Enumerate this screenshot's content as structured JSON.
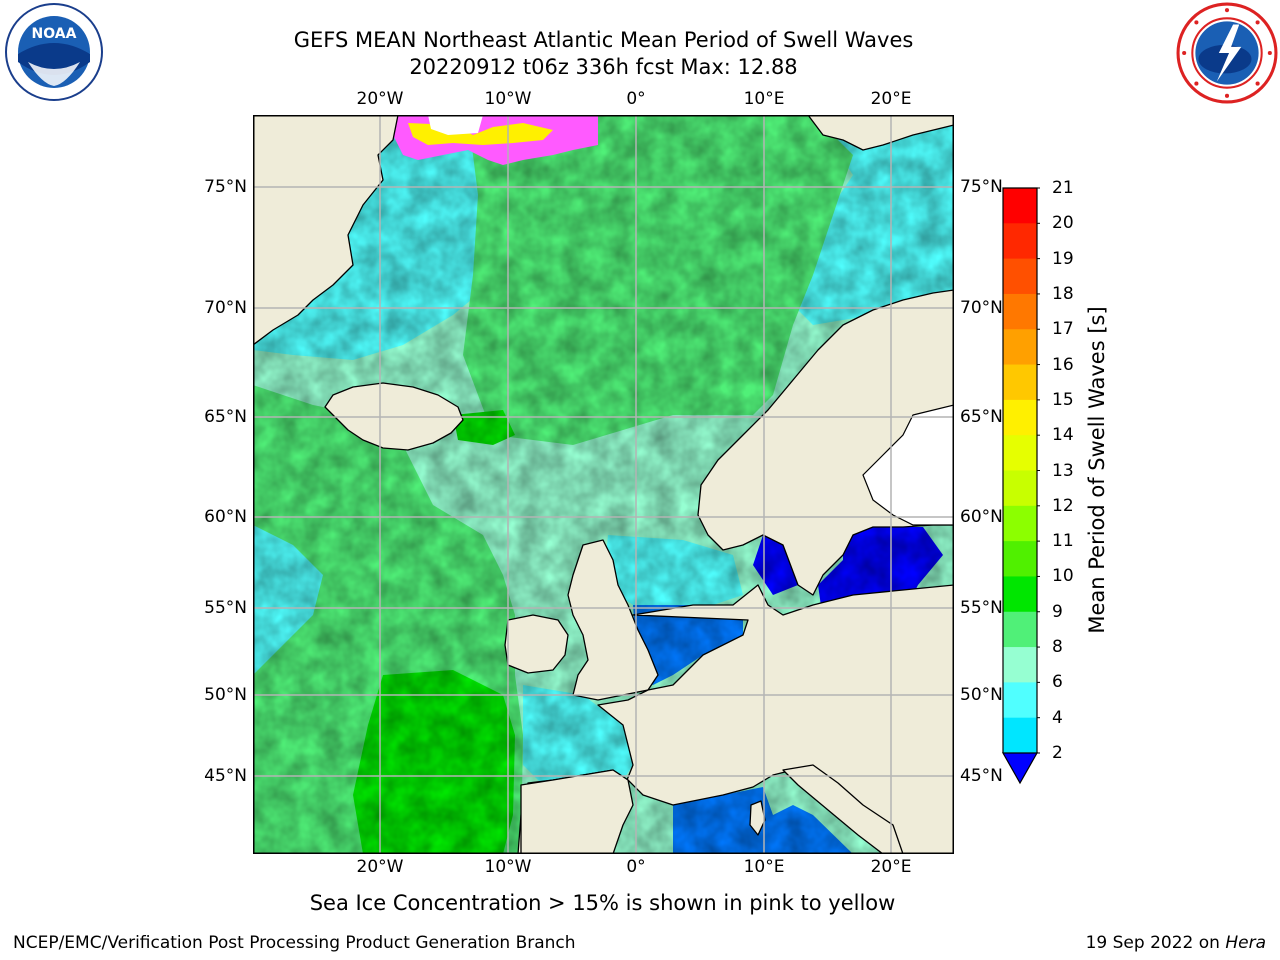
{
  "title": {
    "line1": "GEFS MEAN Northeast Atlantic Mean Period of Swell Waves",
    "line2": "20220912 t06z 336h fcst   Max: 12.88"
  },
  "logos": {
    "noaa": {
      "text": "NOAA",
      "icon": "noaa-logo-icon"
    },
    "nws": {
      "icon": "nws-logo-icon"
    }
  },
  "map": {
    "lon_labels": [
      "20°W",
      "10°W",
      "0°",
      "10°E",
      "20°E"
    ],
    "lat_labels": [
      "75°N",
      "70°N",
      "65°N",
      "60°N",
      "55°N",
      "50°N",
      "45°N"
    ],
    "extent": {
      "lon_min": -30,
      "lon_max": 25,
      "lat_min": 41,
      "lat_max": 78
    },
    "colors": {
      "land": "#efecd9",
      "coast": "#000000",
      "grid": "#b4b4b4",
      "inland_water": "#ffffff"
    }
  },
  "colorbar": {
    "title": "Mean Period of Swell Waves [s]",
    "labels": [
      "21",
      "20",
      "19",
      "18",
      "17",
      "16",
      "15",
      "14",
      "13",
      "12",
      "11",
      "10",
      "9",
      "8",
      "6",
      "4",
      "2"
    ],
    "colors": [
      "#ff0000",
      "#ff2800",
      "#ff5000",
      "#ff7800",
      "#ffa000",
      "#ffc800",
      "#fff000",
      "#e6ff00",
      "#c8ff00",
      "#8cff00",
      "#50f000",
      "#00e600",
      "#50f078",
      "#96ffd2",
      "#50ffff",
      "#00e6ff",
      "#0078ff",
      "#0000ff"
    ]
  },
  "caption": "Sea Ice Concentration > 15% is shown in pink to yellow",
  "footer": {
    "left": "NCEP/EMC/Verification Post Processing Product Generation Branch",
    "right_date": "19 Sep 2022 on ",
    "right_host": "Hera"
  }
}
